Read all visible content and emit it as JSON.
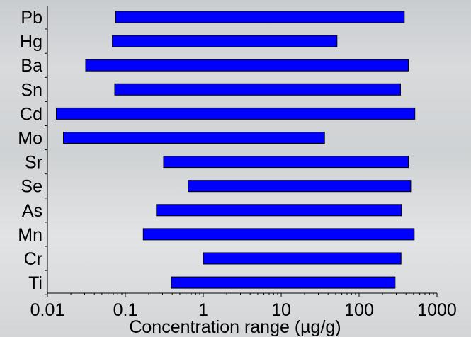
{
  "chart_data": {
    "type": "bar",
    "orientation": "horizontal-range",
    "xlabel": "Concentration range (µg/g)",
    "x_scale": "log",
    "xlim": [
      0.01,
      1000
    ],
    "x_ticks": [
      "0.01",
      "0.1",
      "1",
      "10",
      "100",
      "1000"
    ],
    "bar_color": "#0000ff",
    "grid": false,
    "categories": [
      "Pb",
      "Hg",
      "Ba",
      "Sn",
      "Cd",
      "Mo",
      "Sr",
      "Se",
      "As",
      "Mn",
      "Cr",
      "Ti"
    ],
    "ranges": [
      [
        0.075,
        380
      ],
      [
        0.068,
        52
      ],
      [
        0.031,
        430
      ],
      [
        0.073,
        340
      ],
      [
        0.013,
        520
      ],
      [
        0.016,
        36
      ],
      [
        0.31,
        430
      ],
      [
        0.64,
        460
      ],
      [
        0.25,
        350
      ],
      [
        0.17,
        510
      ],
      [
        1.0,
        345
      ],
      [
        0.39,
        290
      ]
    ]
  }
}
